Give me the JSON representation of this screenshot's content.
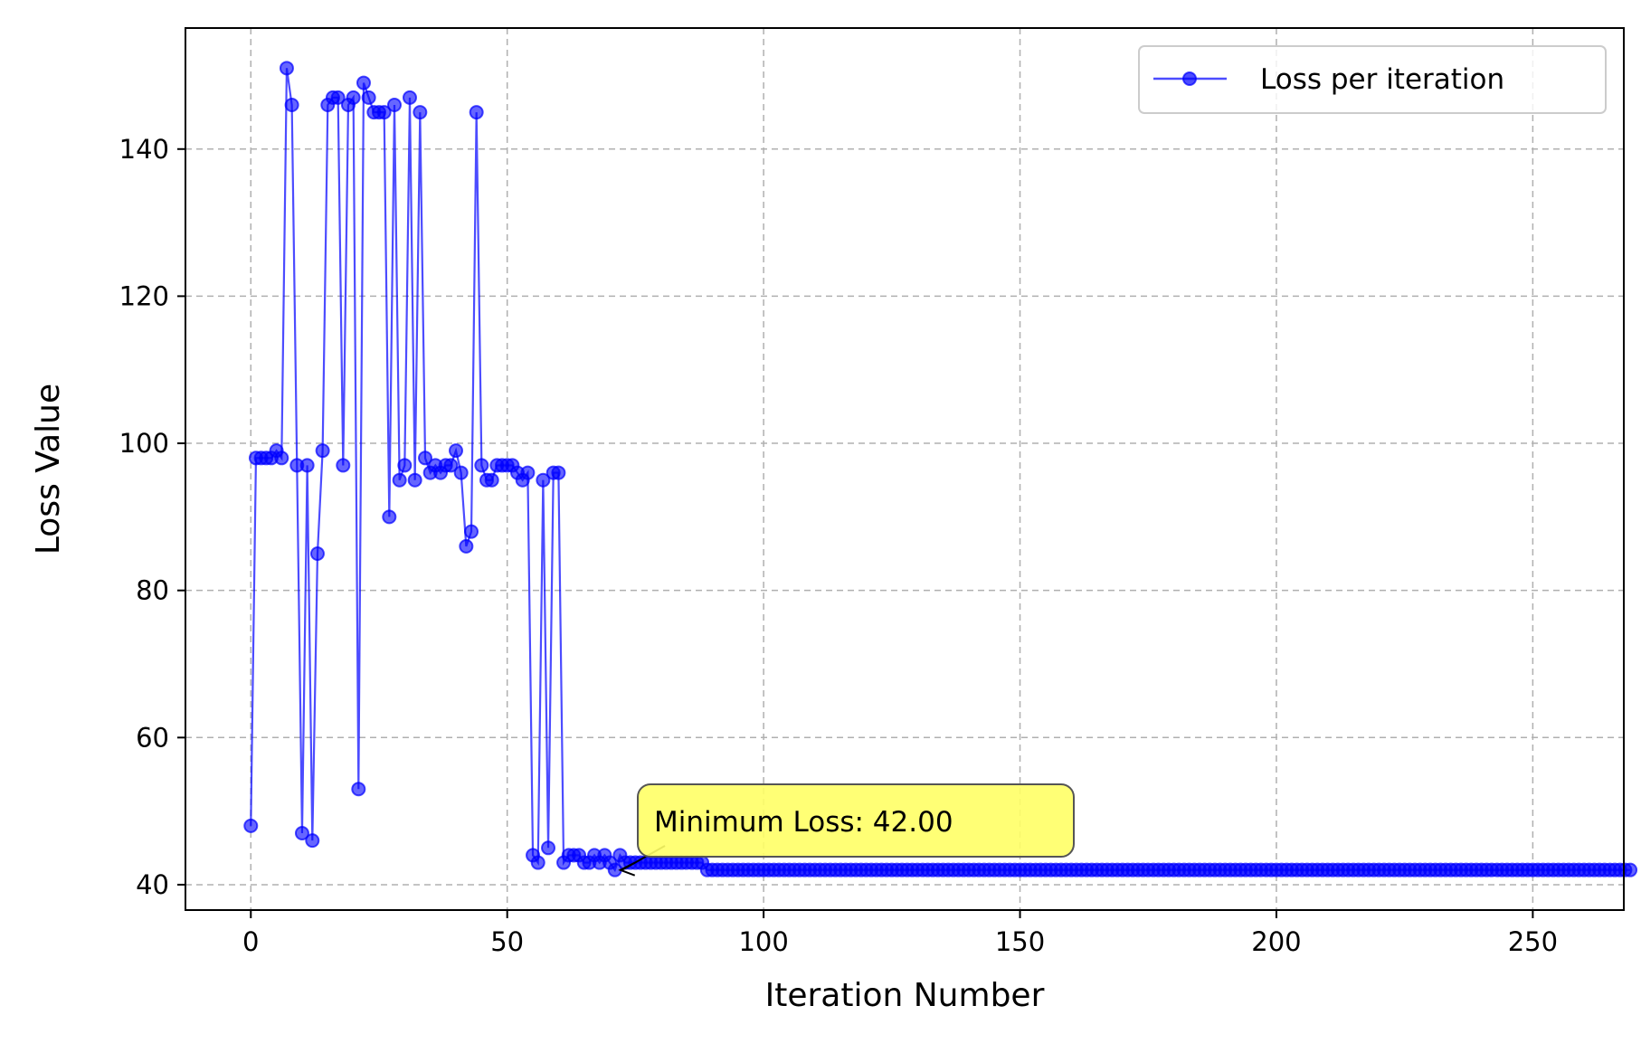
{
  "chart_data": {
    "type": "line",
    "title": "",
    "xlabel": "Iteration Number",
    "ylabel": "Loss Value",
    "xlim": [
      -12.75,
      267.75
    ],
    "ylim": [
      36.55,
      156.45
    ],
    "xticks": [
      0,
      50,
      100,
      150,
      200,
      250
    ],
    "yticks": [
      40,
      60,
      80,
      100,
      120,
      140
    ],
    "grid": true,
    "legend": {
      "position": "top-right",
      "label": "Loss per iteration"
    },
    "series": [
      {
        "name": "Loss per iteration",
        "color": "#0000ff",
        "marker": "circle",
        "x_start": 0,
        "values": [
          48,
          98,
          98,
          98,
          98,
          99,
          98,
          151,
          146,
          97,
          47,
          97,
          46,
          85,
          99,
          146,
          147,
          147,
          97,
          146,
          147,
          53,
          149,
          147,
          145,
          145,
          145,
          90,
          146,
          95,
          97,
          147,
          95,
          145,
          98,
          96,
          97,
          96,
          97,
          97,
          99,
          96,
          86,
          88,
          145,
          97,
          95,
          95,
          97,
          97,
          97,
          97,
          96,
          95,
          96,
          44,
          43,
          95,
          45,
          96,
          96,
          43,
          44,
          44,
          44,
          43,
          43,
          44,
          43,
          44,
          43,
          42,
          44,
          43,
          43,
          43,
          43,
          43,
          43,
          43,
          43,
          43,
          43,
          43,
          43,
          43,
          43,
          43,
          43,
          42,
          42,
          42,
          42,
          42,
          42,
          42,
          42,
          42,
          42,
          42,
          42,
          42,
          42,
          42,
          42,
          42,
          42,
          42,
          42,
          42,
          42,
          42,
          42,
          42,
          42,
          42,
          42,
          42,
          42,
          42,
          42,
          42,
          42,
          42,
          42,
          42,
          42,
          42,
          42,
          42,
          42,
          42,
          42,
          42,
          42,
          42,
          42,
          42,
          42,
          42,
          42,
          42,
          42,
          42,
          42,
          42,
          42,
          42,
          42,
          42,
          42,
          42,
          42,
          42,
          42,
          42,
          42,
          42,
          42,
          42,
          42,
          42,
          42,
          42,
          42,
          42,
          42,
          42,
          42,
          42,
          42,
          42,
          42,
          42,
          42,
          42,
          42,
          42,
          42,
          42,
          42,
          42,
          42,
          42,
          42,
          42,
          42,
          42,
          42,
          42,
          42,
          42,
          42,
          42,
          42,
          42,
          42,
          42,
          42,
          42,
          42,
          42,
          42,
          42,
          42,
          42,
          42,
          42,
          42,
          42,
          42,
          42,
          42,
          42,
          42,
          42,
          42,
          42,
          42,
          42,
          42,
          42,
          42,
          42,
          42,
          42,
          42,
          42,
          42,
          42,
          42,
          42,
          42,
          42,
          42,
          42,
          42,
          42,
          42,
          42,
          42,
          42,
          42,
          42,
          42,
          42,
          42,
          42,
          42,
          42,
          42,
          42,
          42,
          42,
          42,
          42,
          42,
          42,
          42,
          42,
          42,
          42,
          42,
          42,
          42,
          42,
          42,
          42,
          42,
          42
        ]
      }
    ],
    "annotation": {
      "text": "Minimum Loss: 42.00",
      "point": [
        71,
        42
      ],
      "text_anchor_data": [
        90,
        48
      ],
      "box_color": "#ffff66"
    }
  }
}
